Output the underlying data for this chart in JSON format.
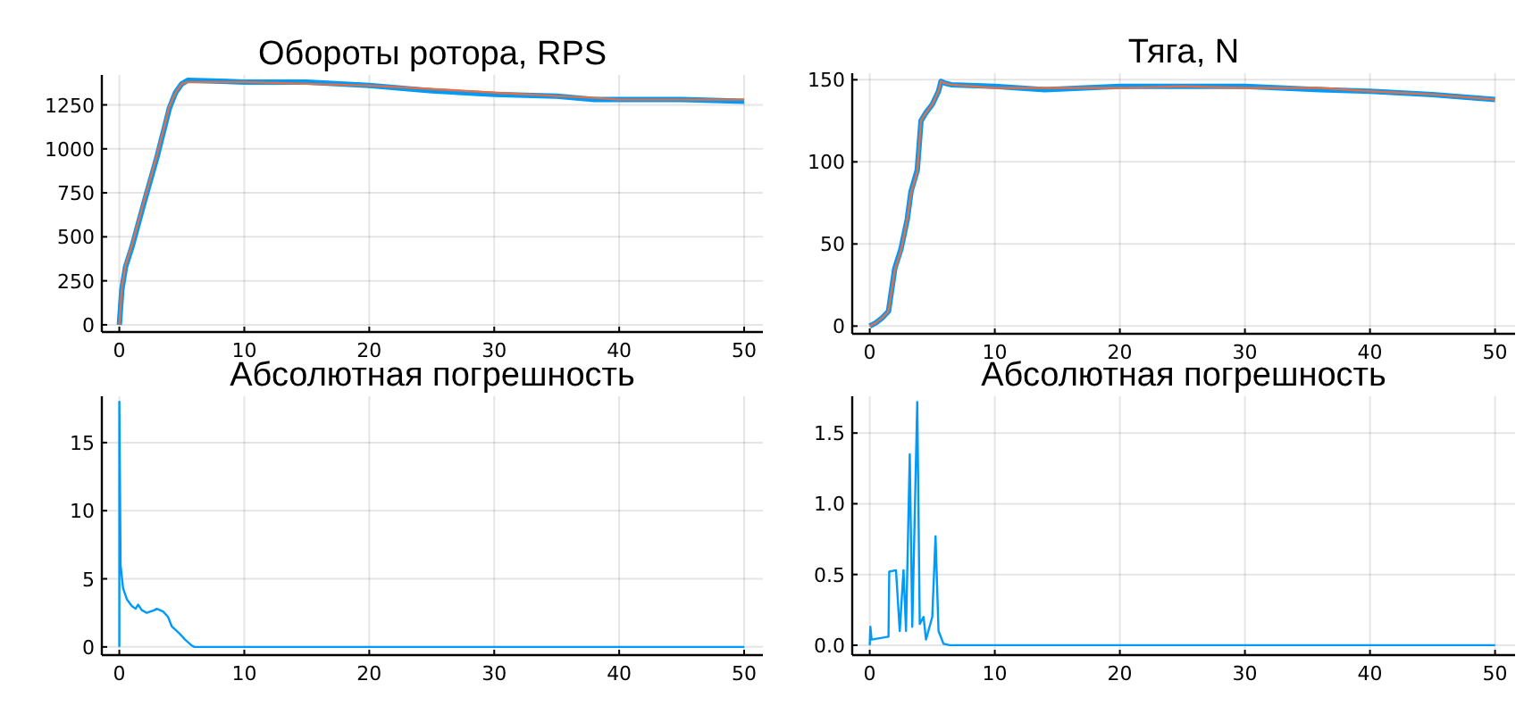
{
  "chart_data": [
    {
      "type": "line",
      "title": "Обороты ротора, RPS",
      "xlim": [
        -1.4,
        51.5
      ],
      "ylim": [
        -41,
        1420
      ],
      "xticks": [
        0,
        10,
        20,
        30,
        40,
        50
      ],
      "yticks": [
        0,
        250,
        500,
        750,
        1000,
        1250
      ],
      "grid": true,
      "series": [
        {
          "color": "#009af9",
          "x": [
            0,
            0.2,
            0.5,
            1,
            2,
            3,
            4,
            4.5,
            5,
            5.5,
            10,
            15,
            20,
            25,
            30,
            35,
            38,
            40,
            45,
            50
          ],
          "values": [
            0,
            200,
            330,
            440,
            700,
            950,
            1230,
            1320,
            1370,
            1390,
            1380,
            1380,
            1360,
            1330,
            1310,
            1300,
            1280,
            1280,
            1280,
            1270
          ]
        },
        {
          "color": "#e26f46",
          "x": [
            0,
            0.2,
            0.5,
            1,
            2,
            3,
            4,
            4.5,
            5,
            5.5,
            10,
            15,
            20,
            25,
            30,
            35,
            38,
            40,
            45,
            50
          ],
          "values": [
            0,
            210,
            340,
            450,
            710,
            960,
            1240,
            1320,
            1370,
            1380,
            1380,
            1370,
            1360,
            1340,
            1320,
            1300,
            1290,
            1280,
            1280,
            1280
          ]
        }
      ]
    },
    {
      "type": "line",
      "title": "Тяга, N",
      "xlim": [
        -1.4,
        51.6
      ],
      "ylim": [
        -4.7,
        154
      ],
      "xticks": [
        0,
        10,
        20,
        30,
        40,
        50
      ],
      "yticks": [
        0,
        50,
        100,
        150
      ],
      "grid": true,
      "series": [
        {
          "color": "#009af9",
          "x": [
            0,
            0.5,
            1,
            1.5,
            2,
            2.5,
            3,
            3.3,
            3.8,
            4.1,
            4.5,
            5,
            5.5,
            5.7,
            6,
            6.5,
            10,
            14,
            20,
            25,
            30,
            36,
            40,
            45,
            50
          ],
          "values": [
            0,
            2,
            5,
            9,
            35,
            47,
            65,
            82,
            95,
            125,
            130,
            135,
            143,
            149,
            148,
            147,
            146,
            144,
            146,
            146,
            146,
            144,
            143,
            141,
            138
          ]
        },
        {
          "color": "#e26f46",
          "x": [
            0,
            0.5,
            1,
            1.5,
            2,
            2.5,
            3,
            3.3,
            3.8,
            4.1,
            4.5,
            5,
            5.5,
            5.7,
            6,
            6.5,
            10,
            14,
            20,
            25,
            30,
            36,
            40,
            45,
            50
          ],
          "values": [
            0,
            2,
            5,
            9,
            34,
            46,
            65,
            81,
            94,
            125,
            130,
            135,
            143,
            149,
            148,
            147,
            145,
            145,
            145,
            146,
            145,
            145,
            143,
            141,
            138
          ]
        }
      ]
    },
    {
      "type": "line",
      "title": "Абсолютная погрешность",
      "xlim": [
        -1.4,
        51.5
      ],
      "ylim": [
        -0.6,
        18.4
      ],
      "xticks": [
        0,
        10,
        20,
        30,
        40,
        50
      ],
      "yticks": [
        0,
        5,
        10,
        15
      ],
      "grid": true,
      "series": [
        {
          "color": "#009af9",
          "x": [
            0,
            0,
            0.1,
            0.3,
            0.6,
            1,
            1.3,
            1.5,
            1.8,
            2.2,
            2.8,
            3,
            3.5,
            3.9,
            4.2,
            4.8,
            5.3,
            5.8,
            6,
            50
          ],
          "values": [
            0,
            18,
            6,
            4.3,
            3.5,
            3,
            2.8,
            3.1,
            2.7,
            2.5,
            2.7,
            2.8,
            2.6,
            2.2,
            1.5,
            1,
            0.5,
            0.1,
            0,
            0
          ]
        }
      ]
    },
    {
      "type": "line",
      "title": "Абсолютная погрешность",
      "xlim": [
        -1.4,
        51.6
      ],
      "ylim": [
        -0.07,
        1.76
      ],
      "xticks": [
        0,
        10,
        20,
        30,
        40,
        50
      ],
      "yticks": [
        {
          "value": 0,
          "label": "0.0"
        },
        0.5,
        {
          "value": 1,
          "label": "1.0"
        },
        1.5
      ],
      "grid": true,
      "series": [
        {
          "color": "#009af9",
          "x": [
            0,
            0.05,
            0.15,
            1.5,
            1.56,
            2.1,
            2.4,
            2.7,
            2.9,
            3.2,
            3.4,
            3.8,
            4.0,
            4.3,
            4.5,
            5,
            5.26,
            5.5,
            5.9,
            6.4,
            50
          ],
          "values": [
            0,
            0.13,
            0.04,
            0.06,
            0.52,
            0.53,
            0.1,
            0.53,
            0.1,
            1.35,
            0.13,
            1.72,
            0.15,
            0.2,
            0.04,
            0.2,
            0.77,
            0.1,
            0.01,
            0,
            0
          ]
        }
      ]
    }
  ]
}
